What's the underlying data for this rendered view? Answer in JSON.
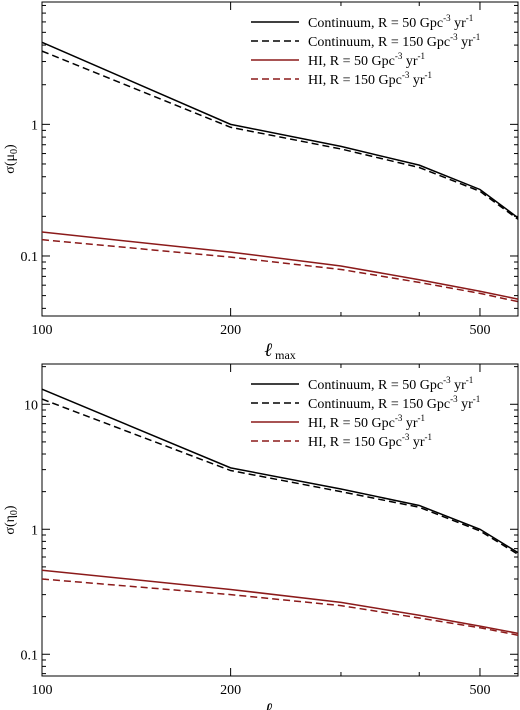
{
  "chart_data": [
    {
      "type": "line",
      "xscale": "log",
      "yscale": "log",
      "xlim": [
        100,
        575
      ],
      "ylim": [
        0.035,
        8.5
      ],
      "xticks": [
        100,
        200,
        500
      ],
      "xtick_labels": [
        "100",
        "200",
        "500"
      ],
      "yticks": [
        0.1,
        1
      ],
      "ytick_labels": [
        "0.1",
        "1"
      ],
      "xlabel": {
        "symbol": "ℓ",
        "subscript": "max"
      },
      "ylabel": {
        "base": "σ(μ",
        "subscript": "0",
        "close": ")"
      },
      "legend_position": "top-right",
      "series": [
        {
          "name": "Continuum, R = 50 Gpc",
          "name_sup": "-3",
          "name_tail": " yr",
          "name_tail_sup": "-1",
          "color": "#000000",
          "dash": "solid",
          "x": [
            100,
            200,
            300,
            400,
            500,
            575
          ],
          "y": [
            4.2,
            1.0,
            0.68,
            0.49,
            0.32,
            0.195
          ]
        },
        {
          "name": "Continuum, R = 150 Gpc",
          "name_sup": "-3",
          "name_tail": " yr",
          "name_tail_sup": "-1",
          "color": "#000000",
          "dash": "dashed",
          "x": [
            100,
            200,
            300,
            400,
            500,
            575
          ],
          "y": [
            3.6,
            0.95,
            0.65,
            0.47,
            0.31,
            0.19
          ]
        },
        {
          "name": "HI, R = 50 Gpc",
          "name_sup": "-3",
          "name_tail": " yr",
          "name_tail_sup": "-1",
          "color": "#8b1a1a",
          "dash": "solid",
          "x": [
            100,
            200,
            300,
            400,
            500,
            575
          ],
          "y": [
            0.152,
            0.107,
            0.084,
            0.066,
            0.054,
            0.047
          ]
        },
        {
          "name": "HI, R = 150 Gpc",
          "name_sup": "-3",
          "name_tail": " yr",
          "name_tail_sup": "-1",
          "color": "#8b1a1a",
          "dash": "dashed",
          "x": [
            100,
            200,
            300,
            400,
            500,
            575
          ],
          "y": [
            0.133,
            0.098,
            0.079,
            0.063,
            0.052,
            0.045
          ]
        }
      ]
    },
    {
      "type": "line",
      "xscale": "log",
      "yscale": "log",
      "xlim": [
        100,
        575
      ],
      "ylim": [
        0.067,
        21
      ],
      "xticks": [
        100,
        200,
        500
      ],
      "xtick_labels": [
        "100",
        "200",
        "500"
      ],
      "yticks": [
        0.1,
        1,
        10
      ],
      "ytick_labels": [
        "0.1",
        "1",
        "10"
      ],
      "xlabel": {
        "symbol": "ℓ",
        "subscript": "max"
      },
      "ylabel": {
        "base": "σ(η",
        "subscript": "0",
        "close": ")"
      },
      "legend_position": "top-right",
      "series": [
        {
          "name": "Continuum, R = 50 Gpc",
          "name_sup": "-3",
          "name_tail": " yr",
          "name_tail_sup": "-1",
          "color": "#000000",
          "dash": "solid",
          "x": [
            100,
            200,
            300,
            400,
            500,
            575
          ],
          "y": [
            13.2,
            3.1,
            2.1,
            1.55,
            1.0,
            0.65
          ]
        },
        {
          "name": "Continuum, R = 150 Gpc",
          "name_sup": "-3",
          "name_tail": " yr",
          "name_tail_sup": "-1",
          "color": "#000000",
          "dash": "dashed",
          "x": [
            100,
            200,
            300,
            400,
            500,
            575
          ],
          "y": [
            11.0,
            2.95,
            2.0,
            1.5,
            0.97,
            0.63
          ]
        },
        {
          "name": "HI, R = 50 Gpc",
          "name_sup": "-3",
          "name_tail": " yr",
          "name_tail_sup": "-1",
          "color": "#8b1a1a",
          "dash": "solid",
          "x": [
            100,
            200,
            300,
            400,
            500,
            575
          ],
          "y": [
            0.47,
            0.33,
            0.26,
            0.205,
            0.168,
            0.147
          ]
        },
        {
          "name": "HI, R = 150 Gpc",
          "name_sup": "-3",
          "name_tail": " yr",
          "name_tail_sup": "-1",
          "color": "#8b1a1a",
          "dash": "dashed",
          "x": [
            100,
            200,
            300,
            400,
            500,
            575
          ],
          "y": [
            0.4,
            0.3,
            0.245,
            0.195,
            0.163,
            0.142
          ]
        }
      ]
    }
  ]
}
